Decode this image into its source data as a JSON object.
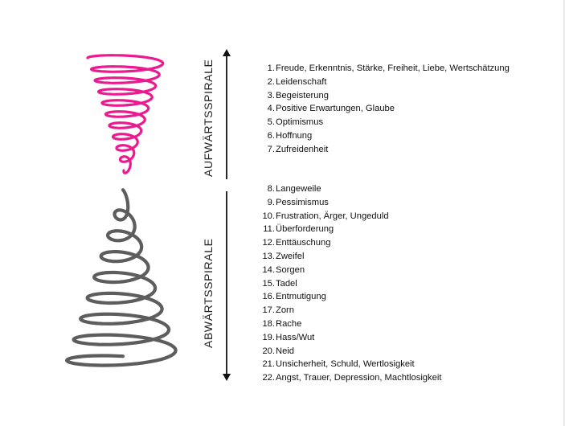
{
  "diagram": {
    "colors": {
      "up_spiral": "#ec1a8f",
      "down_spiral": "#5d5d5d",
      "arrow": "#111111"
    },
    "up_section": {
      "label": "AUFWÄRTSSPIRALE",
      "items": [
        {
          "num": "1.",
          "text": "Freude, Erkenntnis, Stärke, Freiheit, Liebe, Wertschätzung"
        },
        {
          "num": "2.",
          "text": "Leidenschaft"
        },
        {
          "num": "3.",
          "text": "Begeisterung"
        },
        {
          "num": "4.",
          "text": "Positive Erwartungen, Glaube"
        },
        {
          "num": "5.",
          "text": "Optimismus"
        },
        {
          "num": "6.",
          "text": "Hoffnung"
        },
        {
          "num": "7.",
          "text": "Zufreidenheit"
        }
      ]
    },
    "down_section": {
      "label": "ABWÄRTSSPIRALE",
      "items": [
        {
          "num": "8.",
          "text": "Langeweile"
        },
        {
          "num": "9.",
          "text": "Pessimismus"
        },
        {
          "num": "10.",
          "text": "Frustration, Ärger, Ungeduld"
        },
        {
          "num": "11.",
          "text": "Überforderung"
        },
        {
          "num": "12.",
          "text": "Enttäuschung"
        },
        {
          "num": "13.",
          "text": "Zweifel"
        },
        {
          "num": "14.",
          "text": "Sorgen"
        },
        {
          "num": "15.",
          "text": "Tadel"
        },
        {
          "num": "16.",
          "text": "Entmutigung"
        },
        {
          "num": "17.",
          "text": "Zorn"
        },
        {
          "num": "18.",
          "text": "Rache"
        },
        {
          "num": "19.",
          "text": "Hass/Wut"
        },
        {
          "num": "20.",
          "text": "Neid"
        },
        {
          "num": "21.",
          "text": "Unsicherheit, Schuld, Wertlosigkeit"
        },
        {
          "num": "22.",
          "text": "Angst, Trauer, Depression, Machtlosigkeit"
        }
      ]
    }
  }
}
